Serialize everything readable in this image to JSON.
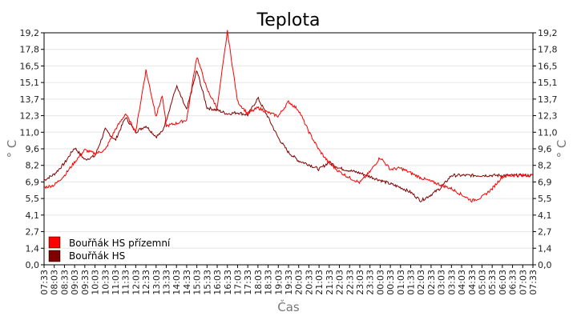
{
  "chart_data": {
    "type": "line",
    "title": "Teplota",
    "xlabel": "Čas",
    "ylabel": "° C",
    "ylim": [
      0,
      19.2
    ],
    "yticks": [
      "0,0",
      "1,4",
      "2,7",
      "4,1",
      "5,5",
      "6,9",
      "8,2",
      "9,6",
      "11,0",
      "12,3",
      "13,7",
      "15,1",
      "16,5",
      "17,8",
      "19,2"
    ],
    "xticks": [
      "07:33",
      "08:03",
      "08:33",
      "09:03",
      "09:33",
      "10:03",
      "10:33",
      "11:03",
      "11:33",
      "12:03",
      "12:33",
      "13:03",
      "13:33",
      "14:03",
      "14:33",
      "15:03",
      "15:33",
      "16:03",
      "16:33",
      "17:03",
      "17:33",
      "18:03",
      "18:33",
      "19:03",
      "19:33",
      "20:03",
      "20:33",
      "21:03",
      "21:33",
      "22:03",
      "22:33",
      "23:03",
      "23:33",
      "00:03",
      "00:33",
      "01:03",
      "01:33",
      "02:03",
      "02:33",
      "03:03",
      "03:33",
      "04:03",
      "04:33",
      "05:03",
      "05:33",
      "06:03",
      "06:33",
      "07:03",
      "07:33"
    ],
    "x_unit": "hours from 07:33",
    "grid": true,
    "legend_position": "bottom-left",
    "series": [
      {
        "name": "Bouřňák HS přízemní",
        "color": "#ff0000",
        "x": [
          0,
          0.5,
          1,
          1.5,
          2,
          2.5,
          3,
          3.5,
          4,
          4.5,
          5,
          5.5,
          5.8,
          6,
          6.5,
          7,
          7.5,
          8,
          8.5,
          9,
          9.5,
          10,
          10.5,
          11,
          11.5,
          12,
          12.5,
          13,
          13.5,
          14,
          14.5,
          15,
          15.5,
          16,
          16.5,
          17,
          17.5,
          18,
          18.5,
          19,
          19.5,
          20,
          20.5,
          21,
          21.5,
          22,
          22.5,
          23,
          23.5,
          24
        ],
        "y": [
          6.4,
          6.6,
          7.4,
          8.5,
          9.5,
          9.2,
          9.5,
          11.2,
          12.5,
          11.0,
          16.1,
          12.3,
          14.0,
          11.5,
          11.7,
          12.0,
          17.3,
          14.5,
          13.0,
          19.3,
          13.5,
          12.5,
          13.0,
          12.6,
          12.3,
          13.5,
          12.8,
          11.0,
          9.5,
          8.4,
          7.7,
          7.2,
          6.8,
          7.7,
          8.9,
          7.9,
          8.0,
          7.6,
          7.2,
          6.9,
          6.6,
          6.3,
          5.8,
          5.3,
          5.6,
          6.3,
          7.3,
          7.4,
          7.4,
          7.4
        ]
      },
      {
        "name": "Bouřňák HS",
        "color": "#800000",
        "x": [
          0,
          0.5,
          1,
          1.5,
          2,
          2.5,
          3,
          3.5,
          4,
          4.5,
          5,
          5.5,
          5.8,
          6,
          6.5,
          7,
          7.5,
          8,
          8.5,
          9,
          9.5,
          10,
          10.5,
          11,
          11.5,
          12,
          12.5,
          13,
          13.5,
          14,
          14.5,
          15,
          15.5,
          16,
          16.5,
          17,
          17.5,
          18,
          18.5,
          19,
          19.5,
          20,
          20.5,
          21,
          21.5,
          22,
          22.5,
          23,
          23.5,
          24
        ],
        "y": [
          7.0,
          7.5,
          8.4,
          9.7,
          8.7,
          9.0,
          11.2,
          10.3,
          12.2,
          11.0,
          11.5,
          10.6,
          11.0,
          12.0,
          14.8,
          12.8,
          16.1,
          13.0,
          12.8,
          12.5,
          12.6,
          12.4,
          13.8,
          12.2,
          10.5,
          9.3,
          8.6,
          8.3,
          7.9,
          8.5,
          8.0,
          7.8,
          7.6,
          7.3,
          7.0,
          6.7,
          6.4,
          6.0,
          5.3,
          5.8,
          6.4,
          7.4,
          7.4,
          7.4,
          7.4,
          7.4,
          7.4,
          7.4,
          7.4,
          7.4
        ]
      }
    ]
  }
}
